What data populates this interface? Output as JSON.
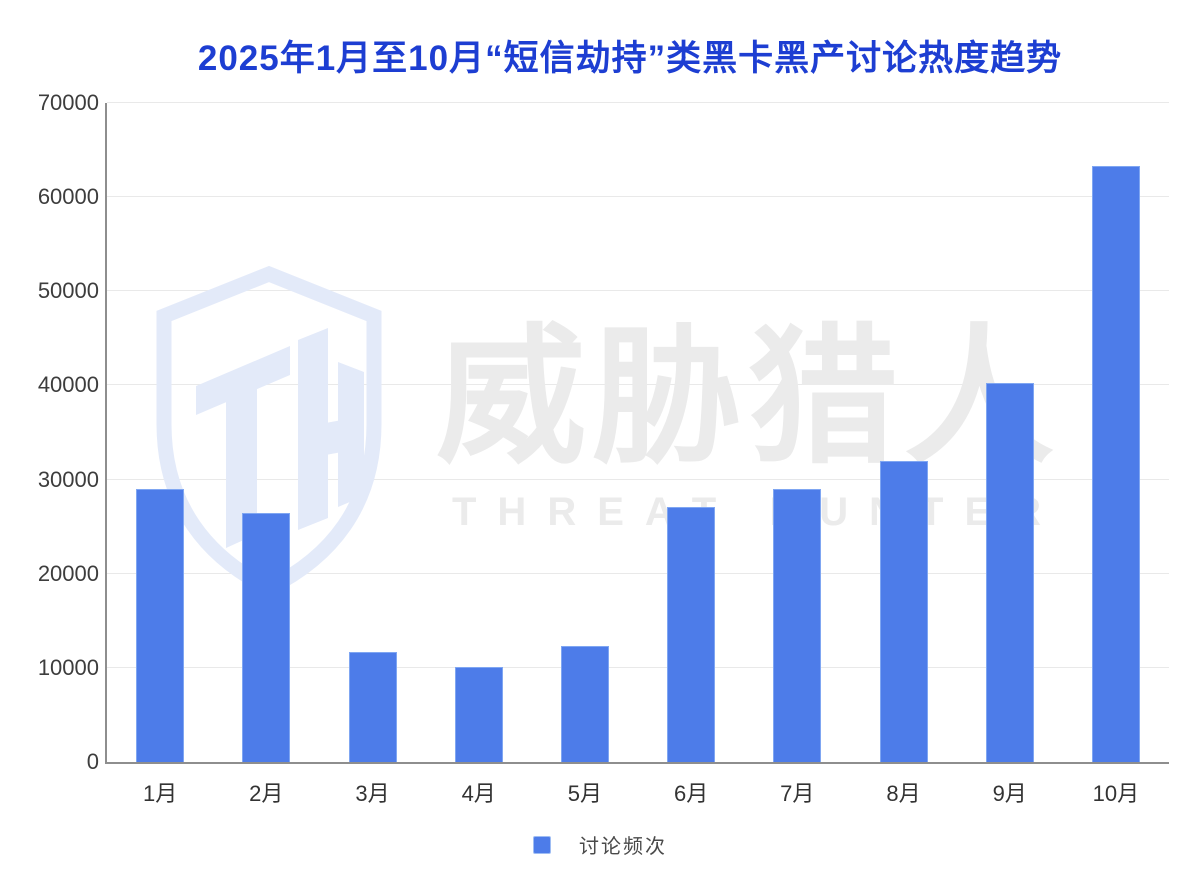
{
  "title": "2025年1月至10月“短信劫持”类黑卡黑产讨论热度趋势",
  "watermark": {
    "cn": "威胁猎人",
    "en": "THREAT HUNTER",
    "logo": "threat-hunter-shield-icon",
    "color": "#ebebeb",
    "logo_color": "#e3eaf9"
  },
  "legend": {
    "label": "讨论频次",
    "swatch_color": "#4d7ce9"
  },
  "colors": {
    "title": "#1d3ed2",
    "bar": "#4d7ce9",
    "gridline": "#e9e9e9",
    "axis": "#8e8e8e",
    "tick_label": "#3d3d3d"
  },
  "chart_data": {
    "type": "bar",
    "title": "2025年1月至10月“短信劫持”类黑卡黑产讨论热度趋势",
    "categories": [
      "1月",
      "2月",
      "3月",
      "4月",
      "5月",
      "6月",
      "7月",
      "8月",
      "9月",
      "10月"
    ],
    "series": [
      {
        "name": "讨论频次",
        "values": [
          29000,
          26400,
          11700,
          10100,
          12300,
          27100,
          29000,
          32000,
          40300,
          63300
        ]
      }
    ],
    "xlabel": "",
    "ylabel": "",
    "ylim": [
      0,
      70000
    ],
    "yticks": [
      0,
      10000,
      20000,
      30000,
      40000,
      50000,
      60000,
      70000
    ],
    "grid": true,
    "legend_position": "bottom",
    "bar_color": "#4d7ce9"
  }
}
